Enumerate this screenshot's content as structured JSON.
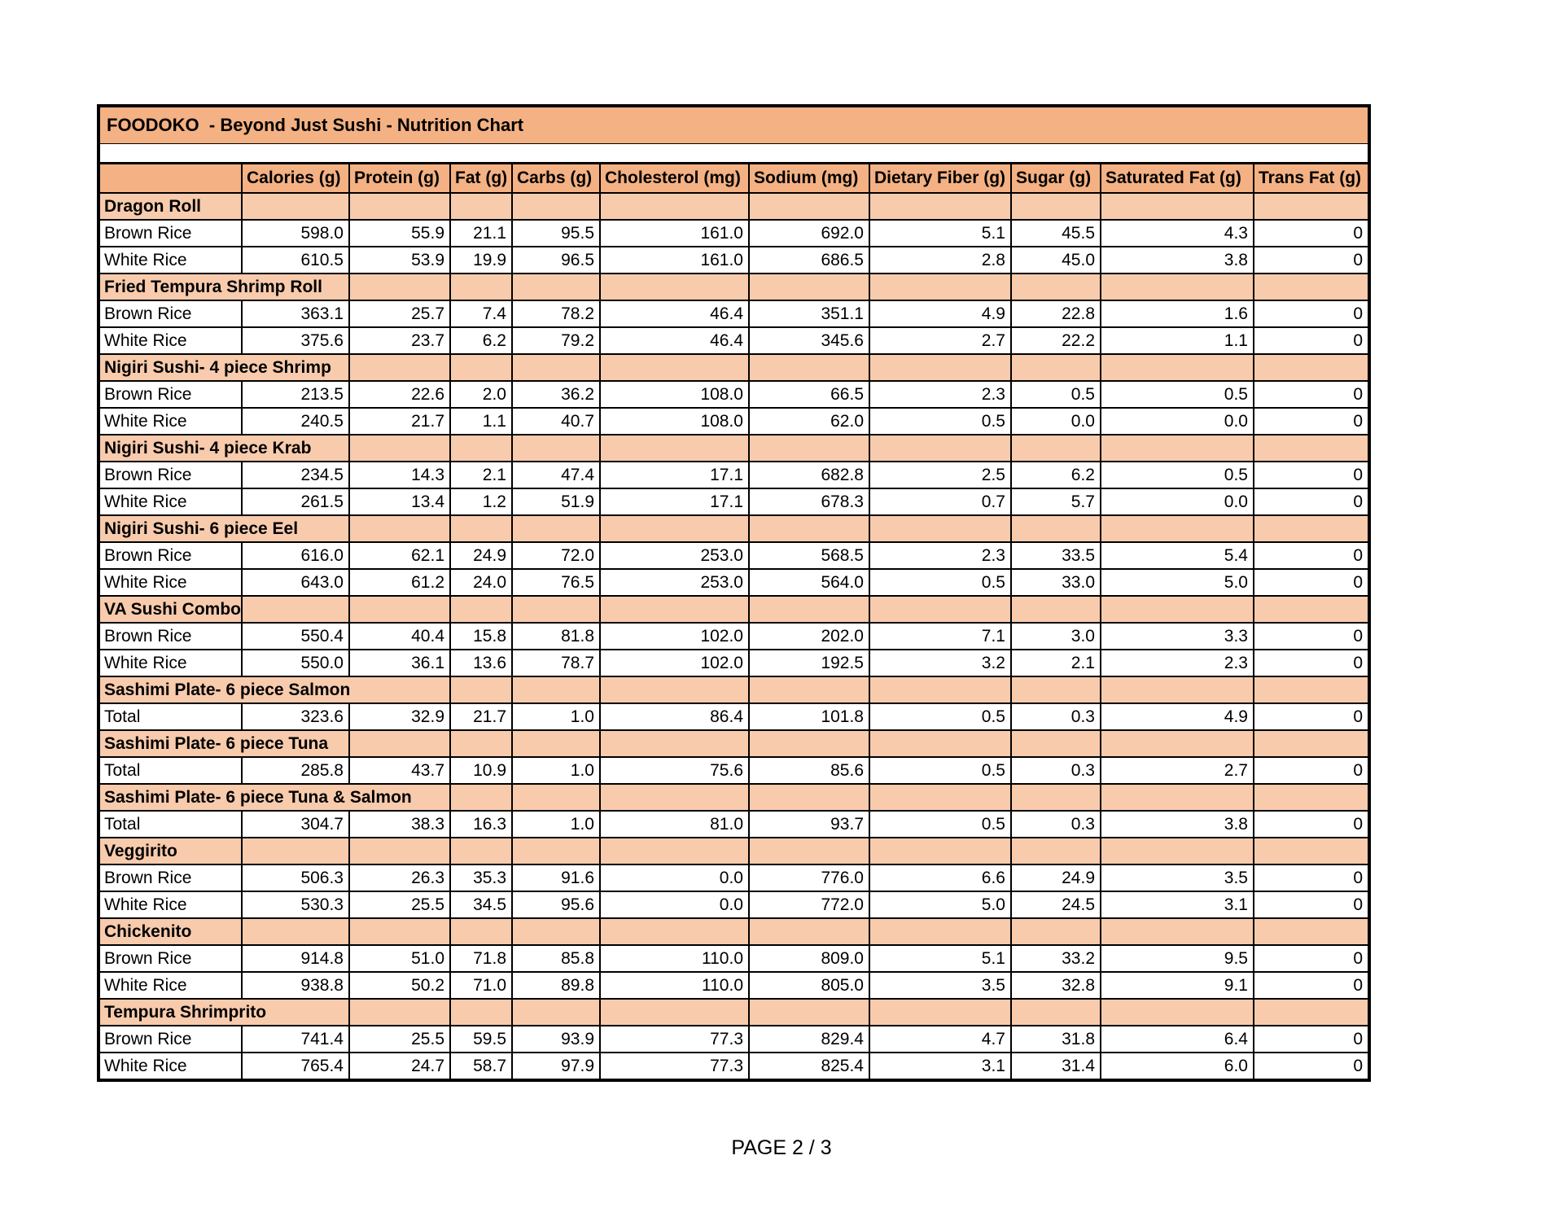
{
  "page": {
    "title": "FOODOKO  - Beyond Just Sushi - Nutrition Chart",
    "footer": "PAGE 2 / 3"
  },
  "colors": {
    "header_bg": "#F4B183",
    "section_bg": "#F8CBAD",
    "border": "#000000"
  },
  "table": {
    "columns": [
      "",
      "Calories (g)",
      "Protein (g)",
      "Fat (g)",
      "Carbs (g)",
      "Cholesterol (mg)",
      "Sodium (mg)",
      "Dietary Fiber (g)",
      "Sugar (g)",
      "Saturated Fat (g)",
      "Trans Fat (g)"
    ],
    "sections": [
      {
        "name": "Dragon Roll",
        "span": 1,
        "rows": [
          {
            "label": "Brown Rice",
            "values": [
              "598.0",
              "55.9",
              "21.1",
              "95.5",
              "161.0",
              "692.0",
              "5.1",
              "45.5",
              "4.3",
              "0"
            ]
          },
          {
            "label": "White Rice",
            "values": [
              "610.5",
              "53.9",
              "19.9",
              "96.5",
              "161.0",
              "686.5",
              "2.8",
              "45.0",
              "3.8",
              "0"
            ]
          }
        ]
      },
      {
        "name": "Fried Tempura Shrimp Roll",
        "span": 2,
        "rows": [
          {
            "label": "Brown Rice",
            "values": [
              "363.1",
              "25.7",
              "7.4",
              "78.2",
              "46.4",
              "351.1",
              "4.9",
              "22.8",
              "1.6",
              "0"
            ]
          },
          {
            "label": "White Rice",
            "values": [
              "375.6",
              "23.7",
              "6.2",
              "79.2",
              "46.4",
              "345.6",
              "2.7",
              "22.2",
              "1.1",
              "0"
            ]
          }
        ]
      },
      {
        "name": "Nigiri Sushi- 4 piece Shrimp",
        "span": 2,
        "rows": [
          {
            "label": "Brown Rice",
            "values": [
              "213.5",
              "22.6",
              "2.0",
              "36.2",
              "108.0",
              "66.5",
              "2.3",
              "0.5",
              "0.5",
              "0"
            ]
          },
          {
            "label": "White Rice",
            "values": [
              "240.5",
              "21.7",
              "1.1",
              "40.7",
              "108.0",
              "62.0",
              "0.5",
              "0.0",
              "0.0",
              "0"
            ]
          }
        ]
      },
      {
        "name": "Nigiri Sushi- 4 piece Krab",
        "span": 2,
        "rows": [
          {
            "label": "Brown Rice",
            "values": [
              "234.5",
              "14.3",
              "2.1",
              "47.4",
              "17.1",
              "682.8",
              "2.5",
              "6.2",
              "0.5",
              "0"
            ]
          },
          {
            "label": "White Rice",
            "values": [
              "261.5",
              "13.4",
              "1.2",
              "51.9",
              "17.1",
              "678.3",
              "0.7",
              "5.7",
              "0.0",
              "0"
            ]
          }
        ]
      },
      {
        "name": "Nigiri Sushi- 6 piece Eel",
        "span": 2,
        "rows": [
          {
            "label": "Brown Rice",
            "values": [
              "616.0",
              "62.1",
              "24.9",
              "72.0",
              "253.0",
              "568.5",
              "2.3",
              "33.5",
              "5.4",
              "0"
            ]
          },
          {
            "label": "White Rice",
            "values": [
              "643.0",
              "61.2",
              "24.0",
              "76.5",
              "253.0",
              "564.0",
              "0.5",
              "33.0",
              "5.0",
              "0"
            ]
          }
        ]
      },
      {
        "name": "VA Sushi Combo",
        "span": 1,
        "rows": [
          {
            "label": "Brown Rice",
            "values": [
              "550.4",
              "40.4",
              "15.8",
              "81.8",
              "102.0",
              "202.0",
              "7.1",
              "3.0",
              "3.3",
              "0"
            ]
          },
          {
            "label": "White Rice",
            "values": [
              "550.0",
              "36.1",
              "13.6",
              "78.7",
              "102.0",
              "192.5",
              "3.2",
              "2.1",
              "2.3",
              "0"
            ]
          }
        ]
      },
      {
        "name": "Sashimi Plate- 6 piece Salmon",
        "span": 3,
        "rows": [
          {
            "label": "Total",
            "values": [
              "323.6",
              "32.9",
              "21.7",
              "1.0",
              "86.4",
              "101.8",
              "0.5",
              "0.3",
              "4.9",
              "0"
            ]
          }
        ]
      },
      {
        "name": "Sashimi Plate- 6 piece Tuna",
        "span": 2,
        "rows": [
          {
            "label": "Total",
            "values": [
              "285.8",
              "43.7",
              "10.9",
              "1.0",
              "75.6",
              "85.6",
              "0.5",
              "0.3",
              "2.7",
              "0"
            ]
          }
        ]
      },
      {
        "name": "Sashimi Plate- 6 piece Tuna & Salmon",
        "span": 3,
        "rows": [
          {
            "label": "Total",
            "values": [
              "304.7",
              "38.3",
              "16.3",
              "1.0",
              "81.0",
              "93.7",
              "0.5",
              "0.3",
              "3.8",
              "0"
            ]
          }
        ]
      },
      {
        "name": "Veggirito",
        "span": 1,
        "rows": [
          {
            "label": "Brown Rice",
            "values": [
              "506.3",
              "26.3",
              "35.3",
              "91.6",
              "0.0",
              "776.0",
              "6.6",
              "24.9",
              "3.5",
              "0"
            ]
          },
          {
            "label": "White Rice",
            "values": [
              "530.3",
              "25.5",
              "34.5",
              "95.6",
              "0.0",
              "772.0",
              "5.0",
              "24.5",
              "3.1",
              "0"
            ]
          }
        ]
      },
      {
        "name": "Chickenito",
        "span": 1,
        "rows": [
          {
            "label": "Brown Rice",
            "values": [
              "914.8",
              "51.0",
              "71.8",
              "85.8",
              "110.0",
              "809.0",
              "5.1",
              "33.2",
              "9.5",
              "0"
            ]
          },
          {
            "label": "White Rice",
            "values": [
              "938.8",
              "50.2",
              "71.0",
              "89.8",
              "110.0",
              "805.0",
              "3.5",
              "32.8",
              "9.1",
              "0"
            ]
          }
        ]
      },
      {
        "name": "Tempura Shrimprito",
        "span": 2,
        "rows": [
          {
            "label": "Brown Rice",
            "values": [
              "741.4",
              "25.5",
              "59.5",
              "93.9",
              "77.3",
              "829.4",
              "4.7",
              "31.8",
              "6.4",
              "0"
            ]
          },
          {
            "label": "White Rice",
            "values": [
              "765.4",
              "24.7",
              "58.7",
              "97.9",
              "77.3",
              "825.4",
              "3.1",
              "31.4",
              "6.0",
              "0"
            ]
          }
        ]
      }
    ]
  }
}
